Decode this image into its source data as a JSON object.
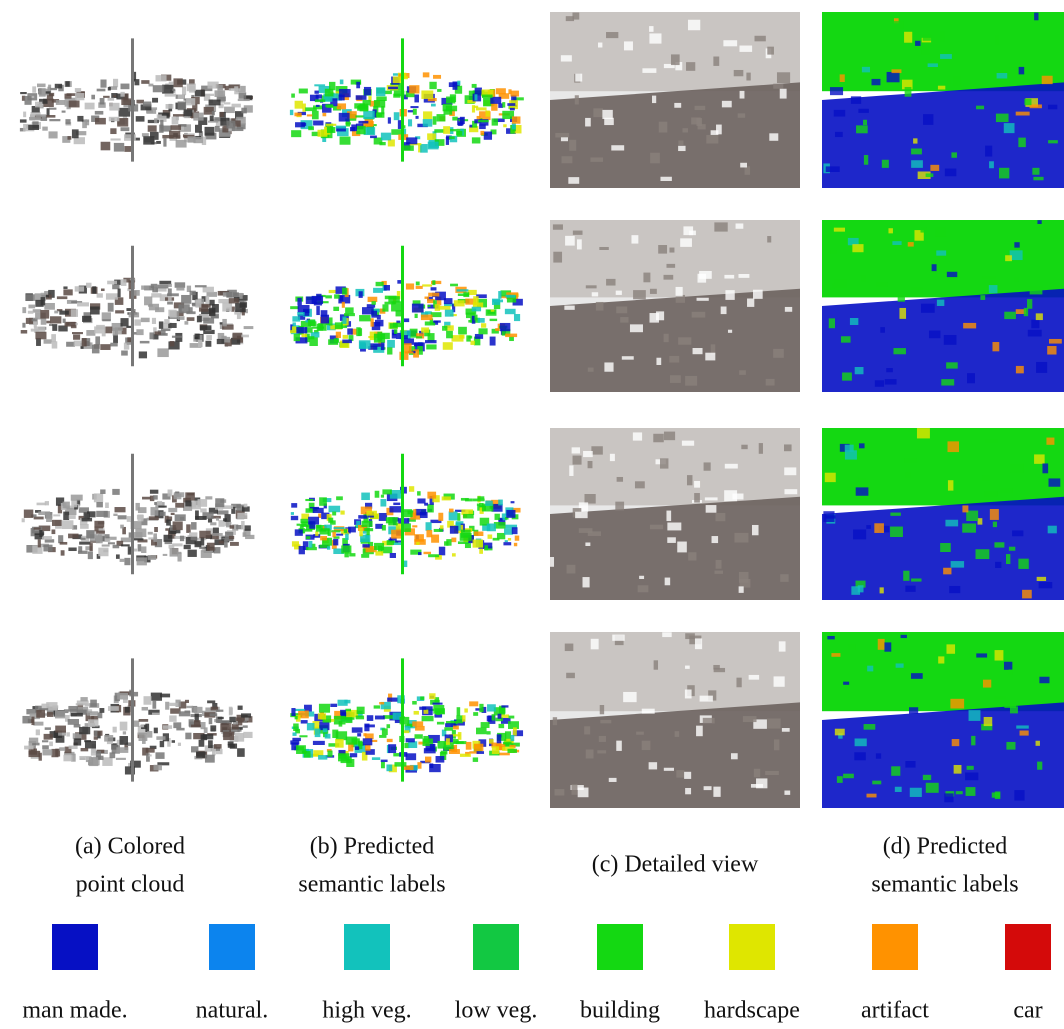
{
  "captions": [
    {
      "lines": [
        "(a) Colored",
        "point cloud"
      ]
    },
    {
      "lines": [
        "(b) Predicted",
        "semantic labels"
      ]
    },
    {
      "lines": [
        "(c) Detailed view"
      ]
    },
    {
      "lines": [
        "(d) Predicted",
        "semantic labels"
      ]
    }
  ],
  "legend": [
    {
      "label": "man made.",
      "color": "#0610c4"
    },
    {
      "label": "natural.",
      "color": "#0c84ee"
    },
    {
      "label": "high  veg.",
      "color": "#12c2bc"
    },
    {
      "label": "low veg.",
      "color": "#12c842"
    },
    {
      "label": "building",
      "color": "#14d812"
    },
    {
      "label": "hardscape",
      "color": "#dfe600"
    },
    {
      "label": "artifact",
      "color": "#ff9200"
    },
    {
      "label": "car",
      "color": "#d40a0a"
    }
  ]
}
